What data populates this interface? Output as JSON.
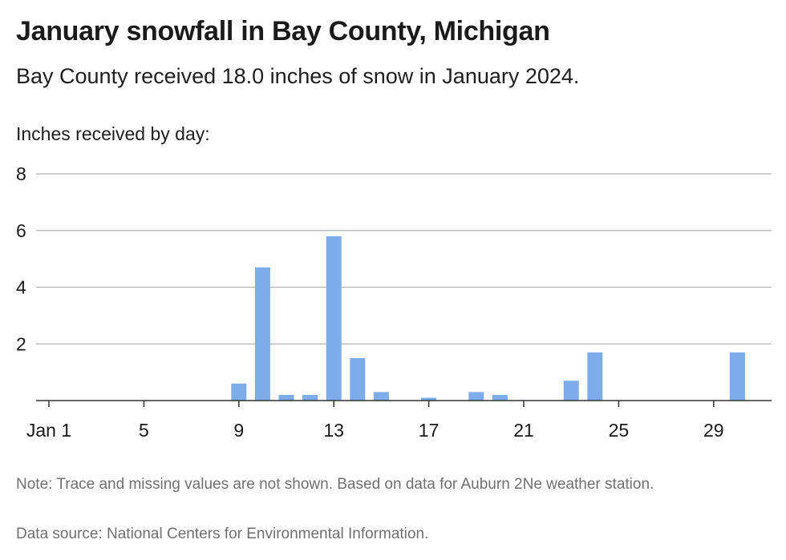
{
  "title": "January snowfall in Bay County, Michigan",
  "subtitle": "Bay County received 18.0 inches of snow in January 2024.",
  "note": "Note: Trace and missing values are not shown. Based on data for Auburn 2Ne weather station.",
  "source": "Data source: National Centers for Environmental Information.",
  "colors": {
    "bar": "#7eacea",
    "grid": "#b3b3b3",
    "axis": "#333333"
  },
  "chart_data": {
    "type": "bar",
    "ylabel": "Inches received by day:",
    "ylim": [
      0,
      8
    ],
    "yticks": [
      2,
      4,
      6,
      8
    ],
    "xtick_labels": [
      "Jan 1",
      "5",
      "9",
      "13",
      "17",
      "21",
      "25",
      "29"
    ],
    "xtick_days": [
      1,
      5,
      9,
      13,
      17,
      21,
      25,
      29
    ],
    "grid": true,
    "days": [
      1,
      2,
      3,
      4,
      5,
      6,
      7,
      8,
      9,
      10,
      11,
      12,
      13,
      14,
      15,
      16,
      17,
      18,
      19,
      20,
      21,
      22,
      23,
      24,
      25,
      26,
      27,
      28,
      29,
      30,
      31
    ],
    "values": [
      0,
      0,
      0,
      0,
      0,
      0,
      0,
      0,
      0.6,
      4.7,
      0.2,
      0.2,
      5.8,
      1.5,
      0.3,
      0,
      0.1,
      0,
      0.3,
      0.2,
      0,
      0,
      0.7,
      1.7,
      0,
      0,
      0,
      0,
      0,
      1.7,
      0
    ]
  }
}
